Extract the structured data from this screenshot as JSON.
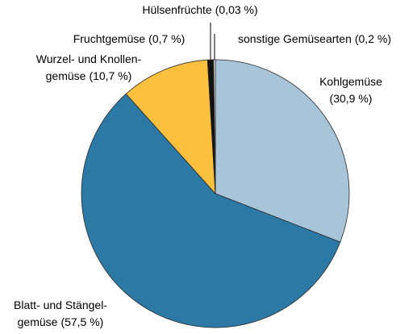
{
  "chart_data": {
    "type": "pie",
    "categories": [
      [
        "Kohlgemüse"
      ],
      [
        "Blatt- und Stängel-",
        "gemüse"
      ],
      [
        "Wurzel- und Knollen-",
        "gemüse"
      ],
      [
        "Fruchtgemüse"
      ],
      [
        "Hülsenfrüchte"
      ],
      [
        "sonstige Gemüsearten"
      ]
    ],
    "values": [
      30.9,
      57.5,
      10.7,
      0.7,
      0.03,
      0.2
    ],
    "value_labels": [
      "(30,9 %)",
      "(57,5 %)",
      "(10,7 %)",
      "(0,7 %)",
      "(0,03 %)",
      "(0,2 %)"
    ],
    "colors": [
      "#a7c4d8",
      "#2d79a5",
      "#fbc13e",
      "#111111",
      "#1d3f66",
      "#ffffff"
    ]
  }
}
